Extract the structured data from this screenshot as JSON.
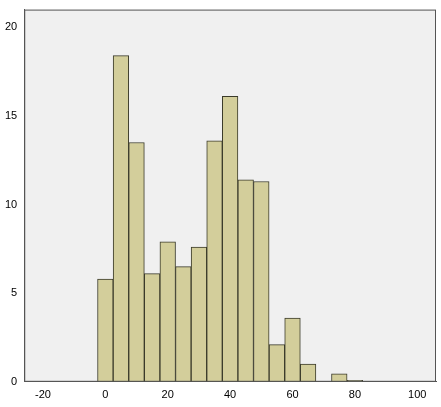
{
  "chart_data": {
    "type": "histogram",
    "bins": [
      -2.5,
      2.5,
      7.5,
      12.5,
      17.5,
      22.5,
      27.5,
      32.5,
      37.5,
      42.5,
      47.5,
      52.5,
      57.5,
      62.5,
      67.5,
      72.5,
      77.5,
      82.5
    ],
    "values": [
      5.8,
      18.4,
      13.5,
      6.1,
      7.9,
      6.5,
      7.6,
      13.6,
      16.1,
      11.4,
      11.3,
      2.1,
      3.6,
      1.0,
      0,
      0.45,
      0.08
    ],
    "color": "#d3ce9b",
    "xlim": [
      -26,
      106
    ],
    "xticks": [
      -20,
      0,
      20,
      40,
      60,
      80,
      100
    ],
    "ylim": [
      0,
      21
    ],
    "yticks": [
      0,
      5,
      10,
      15,
      20
    ],
    "grid": false
  }
}
